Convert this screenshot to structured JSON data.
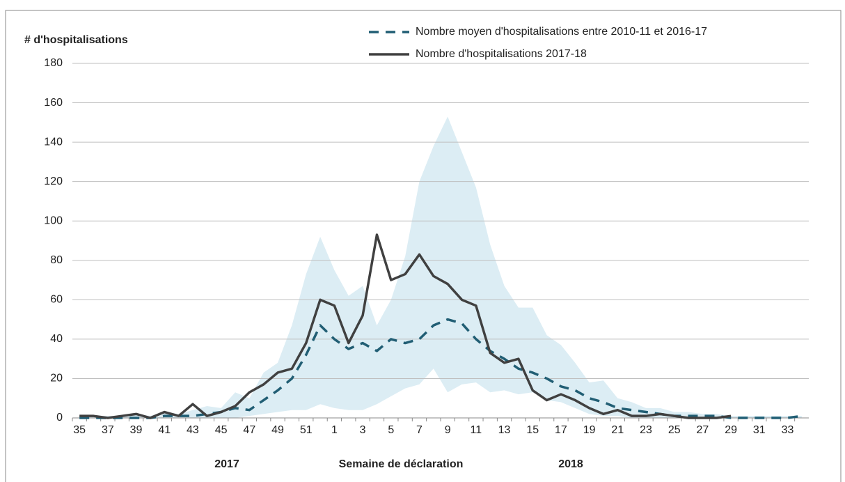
{
  "chart_data": {
    "type": "line",
    "y_label": "# d'hospitalisations",
    "x_label": "Semaine de déclaration",
    "year_labels": [
      "2017",
      "2018"
    ],
    "categories": [
      "35",
      null,
      "37",
      null,
      "39",
      null,
      "41",
      null,
      "43",
      null,
      "45",
      null,
      "47",
      null,
      "49",
      null,
      "51",
      null,
      "1",
      null,
      "3",
      null,
      "5",
      null,
      "7",
      null,
      "9",
      null,
      "11",
      null,
      "13",
      null,
      "15",
      null,
      "17",
      null,
      "19",
      null,
      "21",
      null,
      "23",
      null,
      "25",
      null,
      "27",
      null,
      "29",
      null,
      "31",
      null,
      "33",
      null
    ],
    "series": [
      {
        "name": "Nombre moyen d'hospitalisations entre 2010-11 et 2016-17",
        "color": "#215e74",
        "dashed": true,
        "values": [
          0,
          0,
          0,
          0,
          0,
          0,
          1,
          1,
          1,
          2,
          3,
          5,
          4,
          9,
          14,
          20,
          32,
          47,
          40,
          35,
          38,
          34,
          40,
          38,
          40,
          47,
          50,
          48,
          40,
          34,
          30,
          25,
          23,
          20,
          16,
          14,
          10,
          8,
          5,
          4,
          3,
          2,
          1,
          1,
          1,
          1,
          0,
          0,
          0,
          0,
          0,
          1
        ]
      },
      {
        "name": "Nombre d'hospitalisations 2017-18",
        "color": "#404040",
        "dashed": false,
        "values": [
          1,
          1,
          0,
          1,
          2,
          0,
          3,
          1,
          7,
          1,
          3,
          6,
          13,
          17,
          23,
          25,
          38,
          60,
          57,
          38,
          52,
          93,
          70,
          73,
          83,
          72,
          68,
          60,
          57,
          33,
          28,
          30,
          14,
          9,
          12,
          9,
          5,
          2,
          4,
          1,
          1,
          2,
          1,
          0,
          0,
          0,
          1,
          null,
          null,
          null,
          null,
          null
        ]
      }
    ],
    "band_color": "#dcedf4",
    "band_high": [
      1,
      1,
      1,
      1,
      2,
      1,
      3,
      2,
      4,
      6,
      5,
      13,
      10,
      23,
      28,
      47,
      73,
      92,
      75,
      62,
      67,
      47,
      60,
      82,
      120,
      138,
      153,
      135,
      117,
      88,
      67,
      56,
      56,
      42,
      37,
      28,
      18,
      19,
      10,
      8,
      5,
      5,
      3,
      3,
      2,
      2,
      1,
      1,
      1,
      1,
      1,
      1
    ],
    "band_low": [
      0,
      0,
      0,
      0,
      0,
      0,
      0,
      0,
      0,
      0,
      0,
      0,
      1,
      2,
      3,
      4,
      4,
      7,
      5,
      4,
      4,
      7,
      11,
      15,
      17,
      25,
      13,
      17,
      18,
      13,
      14,
      12,
      13,
      9,
      8,
      5,
      2,
      1,
      1,
      0,
      0,
      0,
      0,
      0,
      0,
      0,
      0,
      0,
      0,
      0,
      0,
      0
    ],
    "ylim": [
      0,
      180
    ],
    "yticks": [
      0,
      20,
      40,
      60,
      80,
      100,
      120,
      140,
      160,
      180
    ],
    "grid": true
  }
}
